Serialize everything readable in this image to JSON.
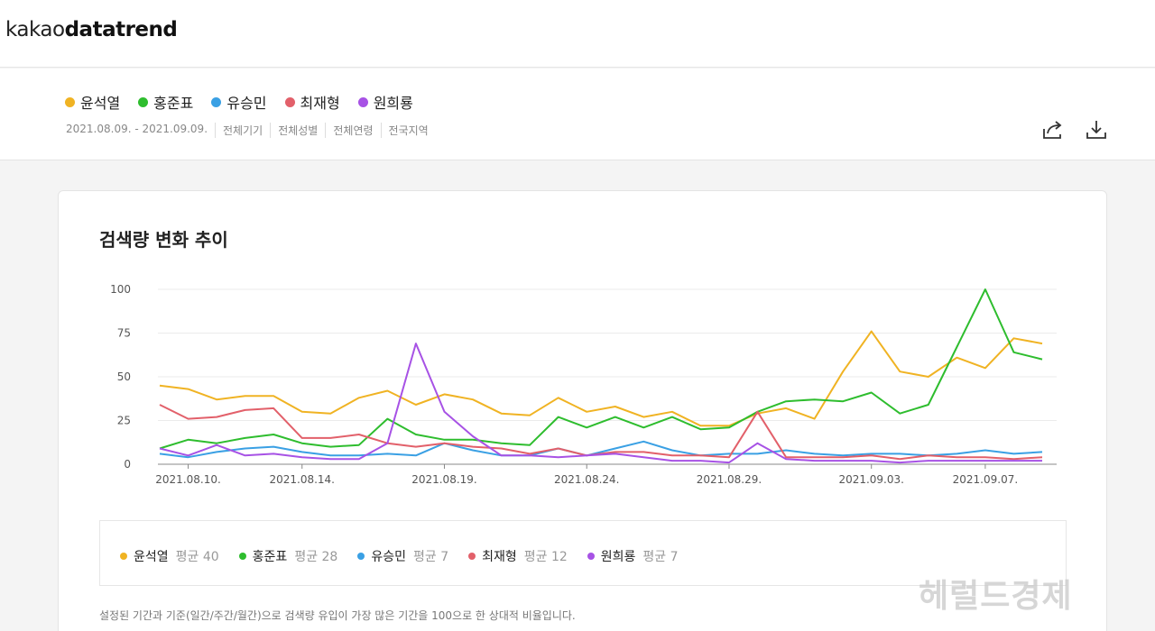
{
  "header": {
    "logo_part1": "kakao",
    "logo_part2": "datatrend"
  },
  "keywords": [
    {
      "label": "윤석열",
      "color": "#f0b323"
    },
    {
      "label": "홍준표",
      "color": "#2ebd2e"
    },
    {
      "label": "유승민",
      "color": "#3aa0e4"
    },
    {
      "label": "최재형",
      "color": "#e2606a"
    },
    {
      "label": "원희룡",
      "color": "#a752e5"
    }
  ],
  "filters": [
    "2021.08.09. - 2021.09.09.",
    "전체기기",
    "전체성별",
    "전체연령",
    "전국지역"
  ],
  "icons": {
    "share": "share-icon",
    "download": "download-icon"
  },
  "card": {
    "title": "검색량 변화 추이",
    "note": "설정된 기간과 기준(일간/주간/월간)으로 검색량 유입이 가장 많은 기간을 100으로 한 상대적 비율입니다."
  },
  "legend": [
    {
      "name": "윤석열",
      "avg": "평균 40",
      "color": "#f0b323"
    },
    {
      "name": "홍준표",
      "avg": "평균 28",
      "color": "#2ebd2e"
    },
    {
      "name": "유승민",
      "avg": "평균 7",
      "color": "#3aa0e4"
    },
    {
      "name": "최재형",
      "avg": "평균 12",
      "color": "#e2606a"
    },
    {
      "name": "원희룡",
      "avg": "평균 7",
      "color": "#a752e5"
    }
  ],
  "watermark": "헤럴드경제",
  "chart_data": {
    "type": "line",
    "x": [
      "2021.08.09.",
      "2021.08.10.",
      "2021.08.11.",
      "2021.08.12.",
      "2021.08.13.",
      "2021.08.14.",
      "2021.08.15.",
      "2021.08.16.",
      "2021.08.17.",
      "2021.08.18.",
      "2021.08.19.",
      "2021.08.20.",
      "2021.08.21.",
      "2021.08.22.",
      "2021.08.23.",
      "2021.08.24.",
      "2021.08.25.",
      "2021.08.26.",
      "2021.08.27.",
      "2021.08.28.",
      "2021.08.29.",
      "2021.08.30.",
      "2021.08.31.",
      "2021.09.01.",
      "2021.09.02.",
      "2021.09.03.",
      "2021.09.04.",
      "2021.09.05.",
      "2021.09.06.",
      "2021.09.07.",
      "2021.09.08.",
      "2021.09.09."
    ],
    "x_tick_labels": [
      "2021.08.10.",
      "2021.08.14.",
      "2021.08.19.",
      "2021.08.24.",
      "2021.08.29.",
      "2021.09.03.",
      "2021.09.07."
    ],
    "y_ticks": [
      0,
      25,
      50,
      75,
      100
    ],
    "ylim": [
      0,
      100
    ],
    "grid": true,
    "series": [
      {
        "name": "윤석열",
        "color": "#f0b323",
        "values": [
          45,
          43,
          37,
          39,
          39,
          30,
          29,
          38,
          42,
          34,
          40,
          37,
          29,
          28,
          38,
          30,
          33,
          27,
          30,
          22,
          22,
          29,
          32,
          26,
          53,
          76,
          53,
          50,
          61,
          55,
          72,
          69
        ]
      },
      {
        "name": "홍준표",
        "color": "#2ebd2e",
        "values": [
          9,
          14,
          12,
          15,
          17,
          12,
          10,
          11,
          26,
          17,
          14,
          14,
          12,
          11,
          27,
          21,
          27,
          21,
          27,
          20,
          21,
          30,
          36,
          37,
          36,
          41,
          29,
          34,
          67,
          100,
          64,
          60
        ]
      },
      {
        "name": "유승민",
        "color": "#3aa0e4",
        "values": [
          6,
          4,
          7,
          9,
          10,
          7,
          5,
          5,
          6,
          5,
          12,
          8,
          5,
          5,
          9,
          5,
          9,
          13,
          8,
          5,
          6,
          6,
          8,
          6,
          5,
          6,
          6,
          5,
          6,
          8,
          6,
          7
        ]
      },
      {
        "name": "최재형",
        "color": "#e2606a",
        "values": [
          34,
          26,
          27,
          31,
          32,
          15,
          15,
          17,
          12,
          10,
          12,
          10,
          9,
          6,
          9,
          5,
          7,
          7,
          5,
          5,
          4,
          30,
          4,
          4,
          4,
          5,
          3,
          5,
          4,
          4,
          3,
          4
        ]
      },
      {
        "name": "원희룡",
        "color": "#a752e5",
        "values": [
          9,
          5,
          11,
          5,
          6,
          4,
          3,
          3,
          12,
          69,
          30,
          16,
          5,
          5,
          4,
          5,
          6,
          4,
          2,
          2,
          1,
          12,
          3,
          2,
          2,
          2,
          1,
          2,
          2,
          2,
          2,
          2
        ]
      }
    ]
  }
}
